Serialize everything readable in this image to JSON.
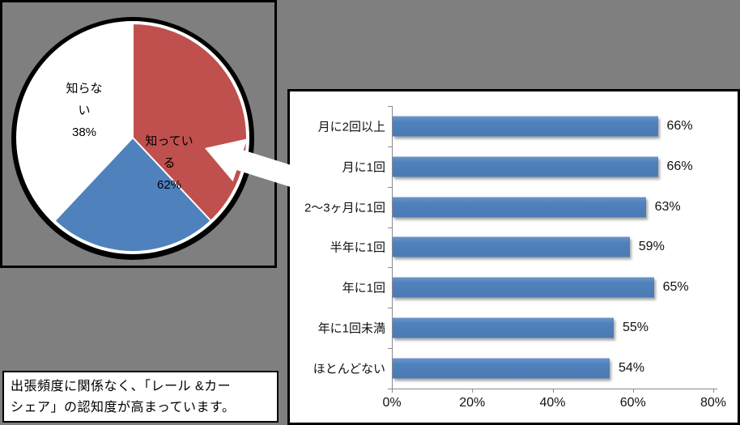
{
  "colors": {
    "background_gray": "#7f7f7f",
    "pie_positive_blue": "#4f81bd",
    "pie_negative_red": "#c0504d",
    "bar_blue": "#4f81bd",
    "panel_border": "#000000",
    "bar_panel_bg": "#ffffff"
  },
  "pie": {
    "label_negative": {
      "lines": [
        "知らな",
        "い",
        "38%"
      ]
    },
    "label_positive": {
      "lines": [
        "知ってい",
        "る",
        "62%"
      ]
    }
  },
  "caption": {
    "line1": "出張頻度に関係なく、「レール &カー",
    "line2": "シェア」の認知度が高まっています。"
  },
  "chart_data": [
    {
      "type": "pie",
      "labels": [
        "知っている",
        "知らない"
      ],
      "values": [
        62,
        38
      ],
      "unit": "%",
      "colors": [
        "#4f81bd",
        "#c0504d"
      ],
      "start_angle_deg": 0,
      "direction": "clockwise",
      "labels_inside": true
    },
    {
      "type": "bar",
      "orientation": "horizontal",
      "categories": [
        "月に2回以上",
        "月に1回",
        "2〜3ヶ月に1回",
        "半年に1回",
        "年に1回",
        "年に1回未満",
        "ほとんどない"
      ],
      "values": [
        66,
        66,
        63,
        59,
        65,
        55,
        54
      ],
      "value_labels": [
        "66%",
        "66%",
        "63%",
        "59%",
        "65%",
        "55%",
        "54%"
      ],
      "xlim": [
        0,
        80
      ],
      "xticks": [
        "0%",
        "20%",
        "40%",
        "60%",
        "80%"
      ],
      "unit": "%",
      "grid": false,
      "legend": false,
      "bar_color": "#4f81bd"
    }
  ]
}
